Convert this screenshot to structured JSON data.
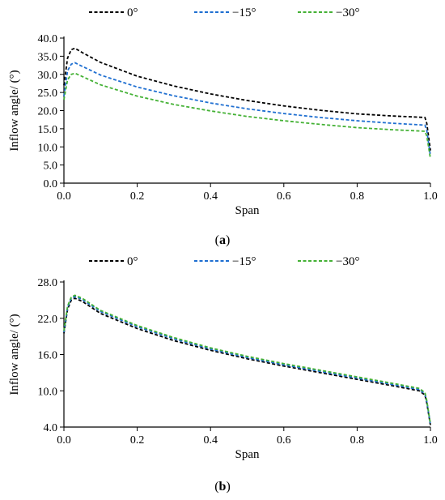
{
  "chart_data": [
    {
      "type": "line",
      "panel_label": "a",
      "xlabel": "Span",
      "ylabel": "Inflow angle/ (°)",
      "xlim": [
        0,
        1.0
      ],
      "ylim": [
        0,
        40
      ],
      "x_ticks": [
        0.0,
        0.2,
        0.4,
        0.6,
        0.8,
        1.0
      ],
      "x_tick_labels": [
        "0.0",
        "0.2",
        "0.4",
        "0.6",
        "0.8",
        "1.0"
      ],
      "y_ticks": [
        0,
        5,
        10,
        15,
        20,
        25,
        30,
        35,
        40
      ],
      "y_tick_labels": [
        "0.0",
        "5.0",
        "10.0",
        "15.0",
        "20.0",
        "25.0",
        "30.0",
        "35.0",
        "40.0"
      ],
      "grid": false,
      "legend_position": "top",
      "series": [
        {
          "name": "0°",
          "color": "#000000",
          "style": "dashed",
          "x": [
            0.0,
            0.01,
            0.02,
            0.03,
            0.05,
            0.1,
            0.2,
            0.3,
            0.4,
            0.5,
            0.6,
            0.7,
            0.8,
            0.9,
            0.97,
            0.985,
            0.99,
            1.0
          ],
          "y": [
            27.0,
            34.5,
            36.8,
            37.2,
            36.0,
            33.3,
            29.5,
            26.8,
            24.6,
            22.8,
            21.3,
            20.1,
            19.1,
            18.5,
            18.2,
            18.1,
            16.5,
            9.0
          ]
        },
        {
          "name": "−15°",
          "color": "#1f6fd1",
          "style": "dashed",
          "x": [
            0.0,
            0.01,
            0.02,
            0.03,
            0.05,
            0.1,
            0.2,
            0.3,
            0.4,
            0.5,
            0.6,
            0.7,
            0.8,
            0.9,
            0.97,
            0.985,
            0.99,
            1.0
          ],
          "y": [
            24.0,
            31.0,
            32.8,
            33.2,
            32.2,
            29.8,
            26.5,
            24.1,
            22.1,
            20.5,
            19.2,
            18.1,
            17.2,
            16.5,
            16.1,
            16.0,
            14.5,
            7.5
          ]
        },
        {
          "name": "−30°",
          "color": "#44b135",
          "style": "dashed",
          "x": [
            0.0,
            0.01,
            0.02,
            0.03,
            0.05,
            0.1,
            0.2,
            0.3,
            0.4,
            0.5,
            0.6,
            0.7,
            0.8,
            0.9,
            0.97,
            0.985,
            0.99,
            1.0
          ],
          "y": [
            23.0,
            28.5,
            30.0,
            30.3,
            29.4,
            27.1,
            24.0,
            21.7,
            19.9,
            18.4,
            17.2,
            16.2,
            15.3,
            14.7,
            14.4,
            14.3,
            13.0,
            6.8
          ]
        }
      ]
    },
    {
      "type": "line",
      "panel_label": "b",
      "xlabel": "Span",
      "ylabel": "Inflow angle/ (°)",
      "xlim": [
        0,
        1.0
      ],
      "ylim": [
        4,
        28
      ],
      "x_ticks": [
        0.0,
        0.2,
        0.4,
        0.6,
        0.8,
        1.0
      ],
      "x_tick_labels": [
        "0.0",
        "0.2",
        "0.4",
        "0.6",
        "0.8",
        "1.0"
      ],
      "y_ticks": [
        4,
        10,
        16,
        22,
        28
      ],
      "y_tick_labels": [
        "4.0",
        "10.0",
        "16.0",
        "22.0",
        "28.0"
      ],
      "grid": false,
      "legend_position": "top",
      "series": [
        {
          "name": "0°",
          "color": "#000000",
          "style": "dashed",
          "x": [
            0.0,
            0.01,
            0.02,
            0.03,
            0.05,
            0.1,
            0.2,
            0.3,
            0.4,
            0.5,
            0.6,
            0.7,
            0.8,
            0.9,
            0.97,
            0.985,
            0.99,
            1.0
          ],
          "y": [
            19.5,
            23.5,
            25.0,
            25.3,
            24.8,
            22.8,
            20.3,
            18.3,
            16.7,
            15.3,
            14.1,
            13.0,
            11.9,
            10.8,
            10.0,
            9.3,
            8.0,
            4.3
          ]
        },
        {
          "name": "−15°",
          "color": "#1f6fd1",
          "style": "dashed",
          "x": [
            0.0,
            0.01,
            0.02,
            0.03,
            0.05,
            0.1,
            0.2,
            0.3,
            0.4,
            0.5,
            0.6,
            0.7,
            0.8,
            0.9,
            0.97,
            0.985,
            0.99,
            1.0
          ],
          "y": [
            19.7,
            23.8,
            25.3,
            25.6,
            25.1,
            23.1,
            20.6,
            18.6,
            16.9,
            15.5,
            14.3,
            13.2,
            12.1,
            11.0,
            10.2,
            9.5,
            8.2,
            4.4
          ]
        },
        {
          "name": "−30°",
          "color": "#44b135",
          "style": "dashed",
          "x": [
            0.0,
            0.01,
            0.02,
            0.03,
            0.05,
            0.1,
            0.2,
            0.3,
            0.4,
            0.5,
            0.6,
            0.7,
            0.8,
            0.9,
            0.97,
            0.985,
            0.99,
            1.0
          ],
          "y": [
            19.9,
            24.0,
            25.5,
            25.8,
            25.3,
            23.3,
            20.8,
            18.8,
            17.1,
            15.7,
            14.5,
            13.4,
            12.3,
            11.2,
            10.4,
            9.7,
            8.4,
            4.5
          ]
        }
      ]
    }
  ]
}
